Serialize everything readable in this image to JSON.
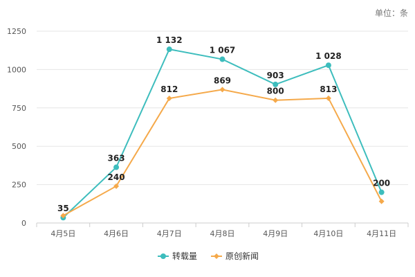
{
  "chart_data": {
    "type": "line",
    "unit_label": "单位：条",
    "categories": [
      "4月5日",
      "4月6日",
      "4月7日",
      "4月8日",
      "4月9日",
      "4月10日",
      "4月11日"
    ],
    "ylim": [
      0,
      1250
    ],
    "yticks": [
      0,
      250,
      500,
      750,
      1000,
      1250
    ],
    "grid": true,
    "legend_position": "bottom",
    "series": [
      {
        "name": "转载量",
        "color": "#3dbdbd",
        "marker": "circle",
        "values": [
          35,
          363,
          1132,
          1067,
          903,
          1028,
          200
        ],
        "labels": [
          "35",
          "363",
          "1 132",
          "1 067",
          "903",
          "1 028",
          "200"
        ]
      },
      {
        "name": "原创新闻",
        "color": "#f5a94a",
        "marker": "diamond",
        "values": [
          48,
          240,
          812,
          869,
          800,
          813,
          141
        ],
        "labels": [
          "",
          "240",
          "812",
          "869",
          "800",
          "813",
          ""
        ]
      }
    ]
  }
}
